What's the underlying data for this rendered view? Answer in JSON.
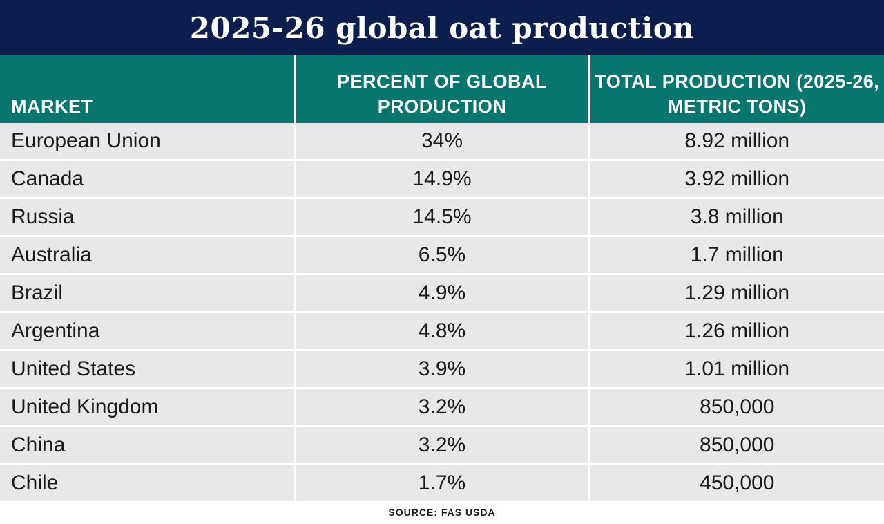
{
  "title": "2025-26 global oat production",
  "source": "SOURCE: FAS USDA",
  "colors": {
    "header_navy": "#0b1e4e",
    "header_teal": "#07766f",
    "row_bg": "#e8e8eb"
  },
  "chart_data": {
    "type": "table",
    "title": "2025-26 global oat production",
    "columns": [
      "MARKET",
      "PERCENT OF GLOBAL PRODUCTION",
      "TOTAL PRODUCTION (2025-26, METRIC TONS)"
    ],
    "rows": [
      [
        "European Union",
        "34%",
        "8.92 million"
      ],
      [
        "Canada",
        "14.9%",
        "3.92 million"
      ],
      [
        "Russia",
        "14.5%",
        "3.8 million"
      ],
      [
        "Australia",
        "6.5%",
        "1.7 million"
      ],
      [
        "Brazil",
        "4.9%",
        "1.29 million"
      ],
      [
        "Argentina",
        "4.8%",
        "1.26 million"
      ],
      [
        "United States",
        "3.9%",
        "1.01 million"
      ],
      [
        "United Kingdom",
        "3.2%",
        "850,000"
      ],
      [
        "China",
        "3.2%",
        "850,000"
      ],
      [
        "Chile",
        "1.7%",
        "450,000"
      ]
    ]
  }
}
